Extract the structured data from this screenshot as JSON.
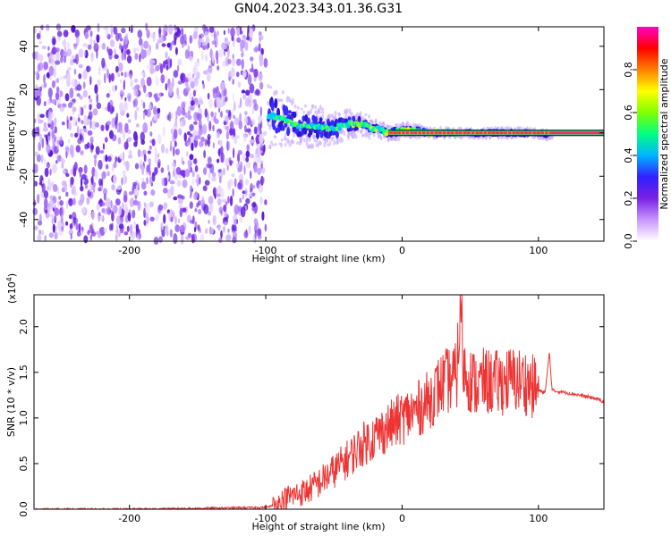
{
  "title": "GN04.2023.343.01.36.G31",
  "colors": {
    "snr_line": "#ee3333",
    "frame": "#000000",
    "bg": "#ffffff"
  },
  "chart_data": [
    {
      "type": "heatmap",
      "xlabel": "Height of straight line (km)",
      "ylabel": "Frequency (Hz)",
      "xlim": [
        -270,
        148
      ],
      "ylim": [
        -50,
        49
      ],
      "xticks": [
        -200,
        -100,
        0,
        100
      ],
      "yticks": [
        -40,
        -20,
        0,
        20,
        40
      ],
      "colorbar": {
        "label": "Normalized spectral amplitude",
        "range": [
          0.0,
          1.0
        ],
        "ticks": [
          "0.0",
          "0.2",
          "0.4",
          "0.6",
          "0.8"
        ],
        "colors": [
          "#ffffff",
          "#c896ff",
          "#7a20e6",
          "#3020ff",
          "#00b4ff",
          "#00ff80",
          "#80ff00",
          "#ffff00",
          "#ff8000",
          "#ff0000",
          "#ff00c8"
        ]
      },
      "noise_region_x": [
        -270,
        -100
      ],
      "signal_track": {
        "x": [
          -98,
          -90,
          -80,
          -70,
          -60,
          -50,
          -40,
          -30,
          -20,
          -10,
          0,
          10,
          20,
          30,
          40,
          50,
          60,
          70,
          80,
          90,
          100,
          105,
          148
        ],
        "freq": [
          8,
          7,
          4,
          3,
          3,
          2,
          4,
          4,
          2,
          0,
          1,
          1,
          0,
          0,
          0,
          0,
          0,
          0,
          0,
          0,
          0,
          -1,
          -1
        ],
        "width": [
          14,
          12,
          10,
          9,
          8,
          7,
          6,
          5,
          4,
          3,
          3,
          3,
          2,
          2,
          2,
          2,
          2,
          2,
          2,
          2,
          2,
          2,
          2
        ]
      }
    },
    {
      "type": "line",
      "xlabel": "Height of straight line (km)",
      "ylabel": "SNR (10 * v/v)",
      "yscale_label": "(x10",
      "yscale_exp": "4",
      "yscale_close": ")",
      "xlim": [
        -270,
        148
      ],
      "ylim": [
        0,
        2.35
      ],
      "xticks": [
        -200,
        -100,
        0,
        100
      ],
      "yticks": [
        "0.0",
        "0.5",
        "1.0",
        "1.5",
        "2.0"
      ],
      "series": [
        {
          "x": [
            -270,
            -250,
            -200,
            -150,
            -100,
            -92,
            -85,
            -80,
            -70,
            -60,
            -50,
            -40,
            -30,
            -20,
            -10,
            0,
            10,
            20,
            25,
            30,
            35,
            40,
            43,
            45,
            50,
            55,
            60,
            70,
            80,
            90,
            95,
            100,
            105,
            108,
            110,
            120,
            130,
            140,
            148
          ],
          "values": [
            0.0,
            0.0,
            0.0,
            0.01,
            0.02,
            0.05,
            0.12,
            0.15,
            0.2,
            0.3,
            0.42,
            0.55,
            0.7,
            0.8,
            0.9,
            1.0,
            1.08,
            1.2,
            1.3,
            1.38,
            1.42,
            1.45,
            2.3,
            1.55,
            1.42,
            1.35,
            1.4,
            1.38,
            1.42,
            1.4,
            1.35,
            1.3,
            1.28,
            1.72,
            1.3,
            1.28,
            1.25,
            1.22,
            1.18
          ]
        }
      ]
    }
  ]
}
